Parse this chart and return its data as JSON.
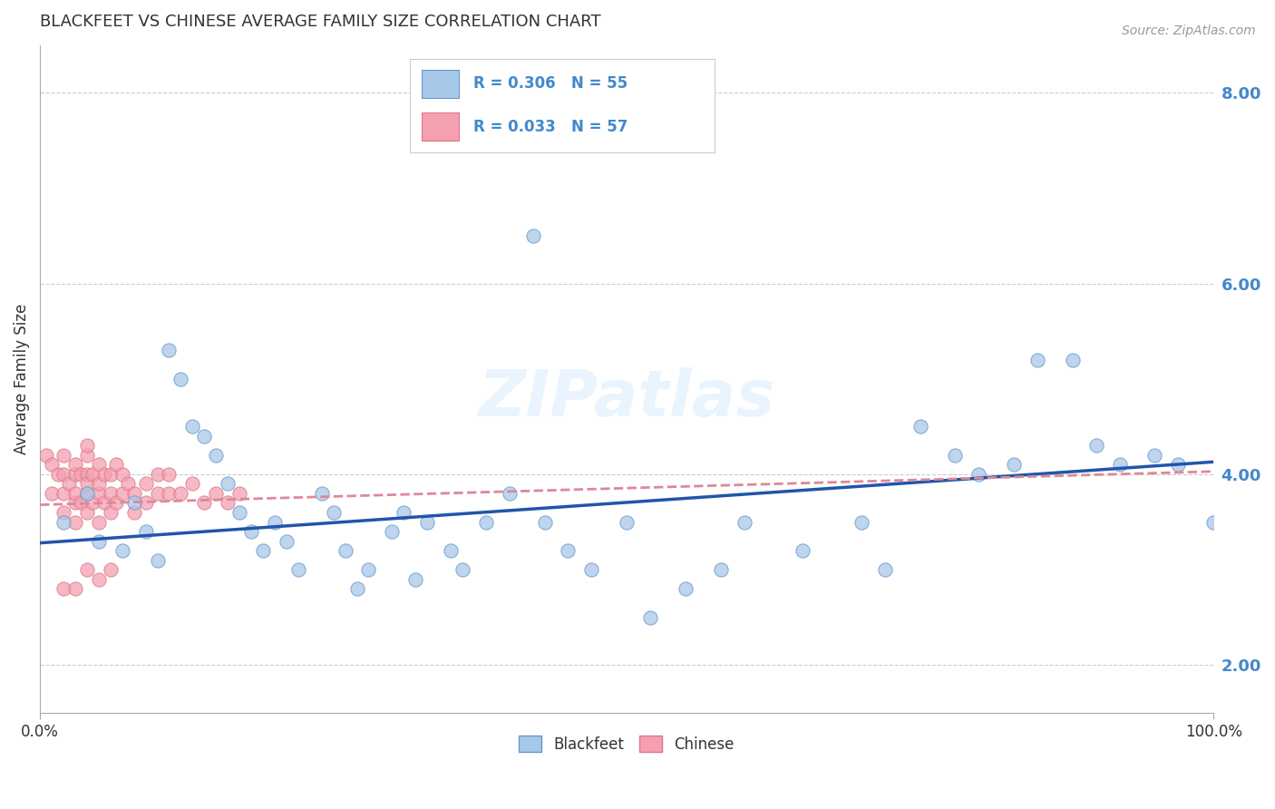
{
  "title": "BLACKFEET VS CHINESE AVERAGE FAMILY SIZE CORRELATION CHART",
  "source": "Source: ZipAtlas.com",
  "ylabel": "Average Family Size",
  "yticks": [
    2.0,
    4.0,
    6.0,
    8.0
  ],
  "xlim": [
    0.0,
    1.0
  ],
  "ylim": [
    1.5,
    8.5
  ],
  "legend_label1": "R = 0.306   N = 55",
  "legend_label2": "R = 0.033   N = 57",
  "color_blue": "#a8c8e8",
  "color_blue_edge": "#6699cc",
  "color_pink": "#f4a0b0",
  "color_pink_edge": "#dd7788",
  "color_trendline_blue": "#2255aa",
  "color_trendline_pink": "#dd8899",
  "watermark": "ZIPatlas",
  "blackfeet_x": [
    0.02,
    0.04,
    0.05,
    0.07,
    0.08,
    0.09,
    0.1,
    0.11,
    0.12,
    0.13,
    0.14,
    0.15,
    0.16,
    0.17,
    0.18,
    0.19,
    0.2,
    0.21,
    0.22,
    0.24,
    0.25,
    0.26,
    0.27,
    0.28,
    0.3,
    0.31,
    0.32,
    0.33,
    0.35,
    0.36,
    0.38,
    0.4,
    0.42,
    0.43,
    0.45,
    0.47,
    0.5,
    0.52,
    0.55,
    0.58,
    0.6,
    0.65,
    0.7,
    0.72,
    0.75,
    0.78,
    0.8,
    0.83,
    0.85,
    0.88,
    0.9,
    0.92,
    0.95,
    0.97,
    1.0
  ],
  "blackfeet_y": [
    3.5,
    3.8,
    3.3,
    3.2,
    3.7,
    3.4,
    3.1,
    5.3,
    5.0,
    4.5,
    4.4,
    4.2,
    3.9,
    3.6,
    3.4,
    3.2,
    3.5,
    3.3,
    3.0,
    3.8,
    3.6,
    3.2,
    2.8,
    3.0,
    3.4,
    3.6,
    2.9,
    3.5,
    3.2,
    3.0,
    3.5,
    3.8,
    6.5,
    3.5,
    3.2,
    3.0,
    3.5,
    2.5,
    2.8,
    3.0,
    3.5,
    3.2,
    3.5,
    3.0,
    4.5,
    4.2,
    4.0,
    4.1,
    5.2,
    5.2,
    4.3,
    4.1,
    4.2,
    4.1,
    3.5
  ],
  "chinese_x": [
    0.005,
    0.01,
    0.01,
    0.015,
    0.02,
    0.02,
    0.02,
    0.02,
    0.025,
    0.03,
    0.03,
    0.03,
    0.03,
    0.03,
    0.035,
    0.035,
    0.04,
    0.04,
    0.04,
    0.04,
    0.04,
    0.04,
    0.045,
    0.045,
    0.05,
    0.05,
    0.05,
    0.05,
    0.055,
    0.055,
    0.06,
    0.06,
    0.06,
    0.065,
    0.065,
    0.07,
    0.07,
    0.075,
    0.08,
    0.08,
    0.09,
    0.09,
    0.1,
    0.1,
    0.11,
    0.11,
    0.12,
    0.13,
    0.14,
    0.15,
    0.16,
    0.17,
    0.02,
    0.03,
    0.04,
    0.05,
    0.06
  ],
  "chinese_y": [
    4.2,
    3.8,
    4.1,
    4.0,
    3.6,
    3.8,
    4.0,
    4.2,
    3.9,
    3.5,
    3.7,
    4.0,
    4.1,
    3.8,
    3.7,
    4.0,
    3.6,
    3.8,
    4.0,
    4.2,
    4.3,
    3.9,
    3.7,
    4.0,
    3.5,
    3.8,
    3.9,
    4.1,
    3.7,
    4.0,
    3.6,
    3.8,
    4.0,
    3.7,
    4.1,
    3.8,
    4.0,
    3.9,
    3.6,
    3.8,
    3.7,
    3.9,
    3.8,
    4.0,
    3.8,
    4.0,
    3.8,
    3.9,
    3.7,
    3.8,
    3.7,
    3.8,
    2.8,
    2.8,
    3.0,
    2.9,
    3.0
  ],
  "legend_items": [
    {
      "label": "Blackfeet",
      "color": "#a8c8e8"
    },
    {
      "label": "Chinese",
      "color": "#f4a0b0"
    }
  ]
}
